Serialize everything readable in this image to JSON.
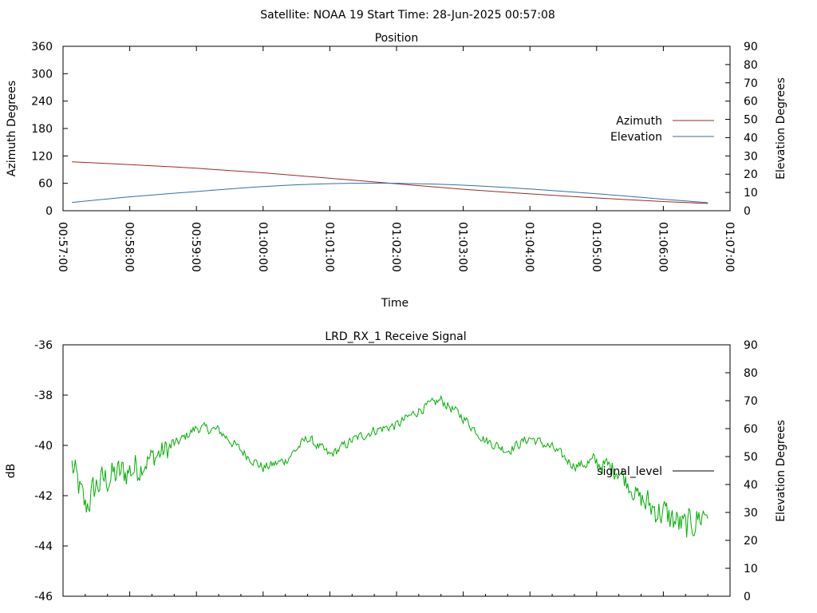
{
  "suptitle": "Satellite: NOAA 19    Start Time: 28-Jun-2025 00:57:08",
  "chart_data": [
    {
      "type": "line",
      "title": "Position",
      "xlabel": "Time",
      "ylabel": "Azimuth Degrees",
      "y2label": "Elevation Degrees",
      "x_ticks": [
        "00:57:00",
        "00:58:00",
        "00:59:00",
        "01:00:00",
        "01:01:00",
        "01:02:00",
        "01:03:00",
        "01:04:00",
        "01:05:00",
        "01:06:00",
        "01:07:00"
      ],
      "xlim": [
        "00:57:00",
        "01:07:00"
      ],
      "ylim": [
        0,
        360
      ],
      "y_ticks": [
        "0",
        "60",
        "120",
        "180",
        "240",
        "300",
        "360"
      ],
      "y2lim": [
        0,
        90
      ],
      "y2_ticks": [
        "0",
        "10",
        "20",
        "30",
        "40",
        "50",
        "60",
        "70",
        "80",
        "90"
      ],
      "legend_position": "right",
      "grid": false,
      "series": [
        {
          "name": "Azimuth",
          "axis": "left",
          "color": "#a02828",
          "x": [
            "00:57:08",
            "00:58:00",
            "00:59:00",
            "01:00:00",
            "01:01:00",
            "01:02:00",
            "01:03:00",
            "01:04:00",
            "01:05:00",
            "01:06:00",
            "01:06:40"
          ],
          "values": [
            107,
            101,
            93,
            83,
            71,
            59,
            47,
            37,
            28,
            20,
            16
          ]
        },
        {
          "name": "Elevation",
          "axis": "right",
          "color": "#3070a8",
          "x": [
            "00:57:08",
            "00:58:00",
            "00:59:00",
            "01:00:00",
            "01:01:00",
            "01:02:00",
            "01:03:00",
            "01:04:00",
            "01:05:00",
            "01:06:00",
            "01:06:40"
          ],
          "values": [
            4.5,
            7.6,
            10.5,
            13.2,
            14.8,
            15.0,
            14.0,
            11.9,
            9.3,
            6.3,
            4.4
          ]
        }
      ]
    },
    {
      "type": "line",
      "title": "LRD_RX_1 Receive Signal",
      "ylabel": "dB",
      "y2label": "Elevation Degrees",
      "xlim": [
        "00:57:00",
        "01:07:00"
      ],
      "ylim": [
        -46,
        -36
      ],
      "y_ticks": [
        "-36",
        "-38",
        "-40",
        "-42",
        "-44",
        "-46"
      ],
      "y2lim": [
        0,
        90
      ],
      "y2_ticks": [
        "0",
        "10",
        "20",
        "30",
        "40",
        "50",
        "60",
        "70",
        "80",
        "90"
      ],
      "legend_position": "right",
      "legend_line_color": "#000000",
      "grid": false,
      "series": [
        {
          "name": "signal_level",
          "color": "#00b000",
          "x": [
            "00:57:08",
            "00:57:20",
            "00:57:30",
            "00:57:40",
            "00:58:00",
            "00:58:20",
            "00:58:40",
            "00:59:00",
            "00:59:20",
            "00:59:40",
            "01:00:00",
            "01:00:20",
            "01:00:40",
            "01:01:00",
            "01:01:20",
            "01:01:40",
            "01:02:00",
            "01:02:20",
            "01:02:40",
            "01:03:00",
            "01:03:20",
            "01:03:40",
            "01:04:00",
            "01:04:20",
            "01:04:40",
            "01:05:00",
            "01:05:20",
            "01:05:40",
            "01:06:00",
            "01:06:20",
            "01:06:40"
          ],
          "values": [
            -40.8,
            -42.5,
            -41.6,
            -41.3,
            -41.0,
            -40.5,
            -40.0,
            -39.3,
            -39.4,
            -40.2,
            -40.9,
            -40.6,
            -39.7,
            -40.4,
            -39.8,
            -39.4,
            -39.2,
            -38.6,
            -38.2,
            -38.9,
            -39.8,
            -40.2,
            -39.7,
            -40.1,
            -40.8,
            -40.7,
            -41.0,
            -42.2,
            -42.7,
            -43.3,
            -42.6
          ]
        }
      ]
    }
  ]
}
